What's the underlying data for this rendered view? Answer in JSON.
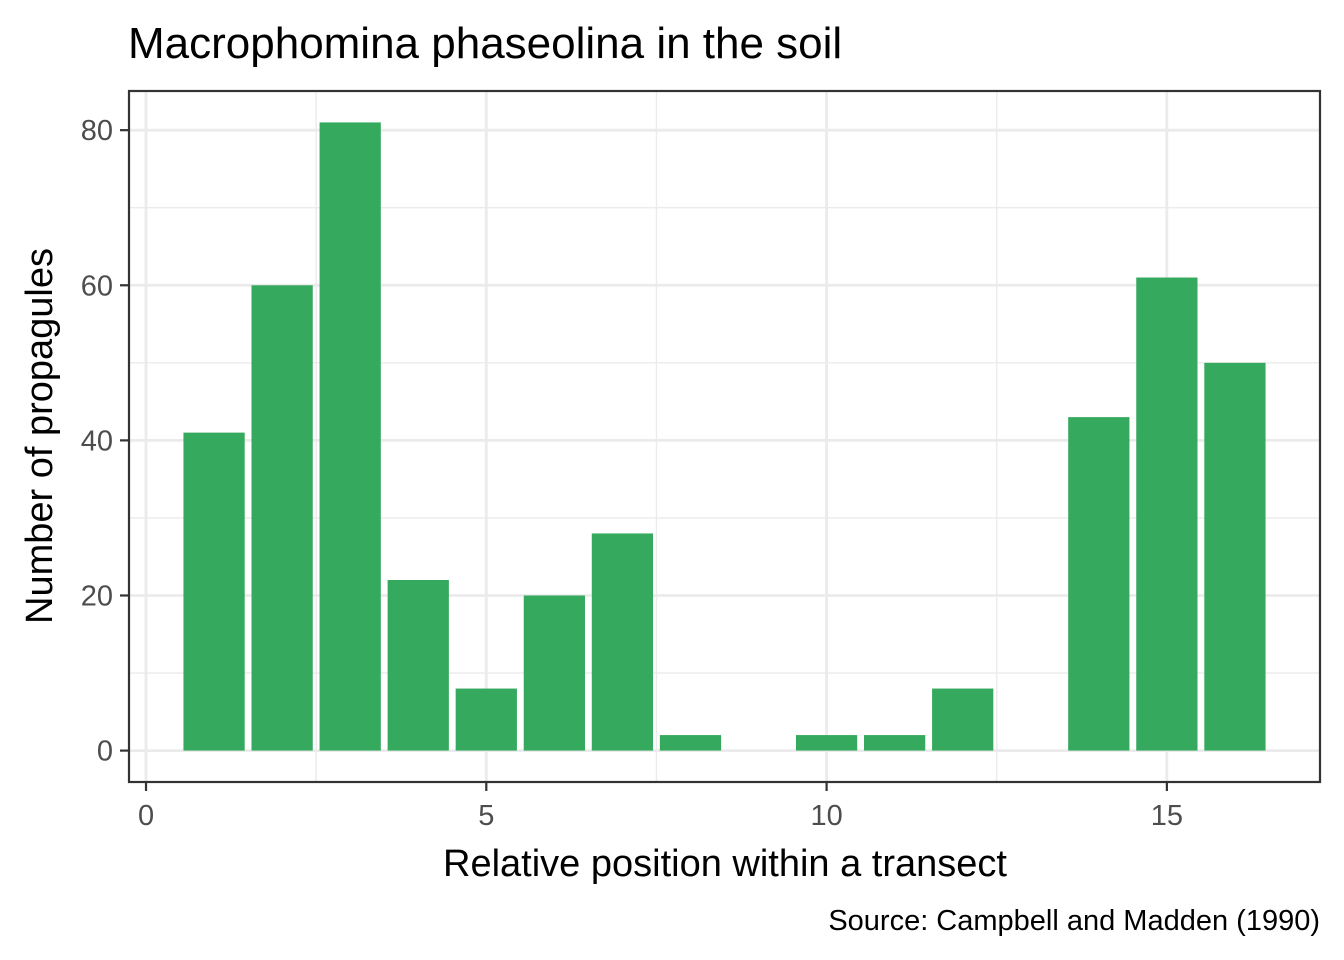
{
  "chart_data": {
    "type": "bar",
    "title": "Macrophomina phaseolina in the soil",
    "xlabel": "Relative position within a transect",
    "ylabel": "Number of propagules",
    "caption": "Source: Campbell and Madden (1990)",
    "x": [
      1,
      2,
      3,
      4,
      5,
      6,
      7,
      8,
      9,
      10,
      11,
      12,
      13,
      14,
      15,
      16
    ],
    "values": [
      41,
      60,
      81,
      22,
      8,
      20,
      28,
      2,
      0,
      2,
      2,
      8,
      0,
      43,
      61,
      50
    ],
    "xlim": [
      -0.25,
      17.25
    ],
    "ylim": [
      -4.05,
      85.05
    ],
    "x_ticks": [
      "0",
      "5",
      "10",
      "15"
    ],
    "x_tick_values": [
      0,
      5,
      10,
      15
    ],
    "y_ticks": [
      "0",
      "20",
      "40",
      "60",
      "80"
    ],
    "y_tick_values": [
      0,
      20,
      40,
      60,
      80
    ],
    "bar_color": "#35a95e",
    "grid": true,
    "legend": "none"
  }
}
